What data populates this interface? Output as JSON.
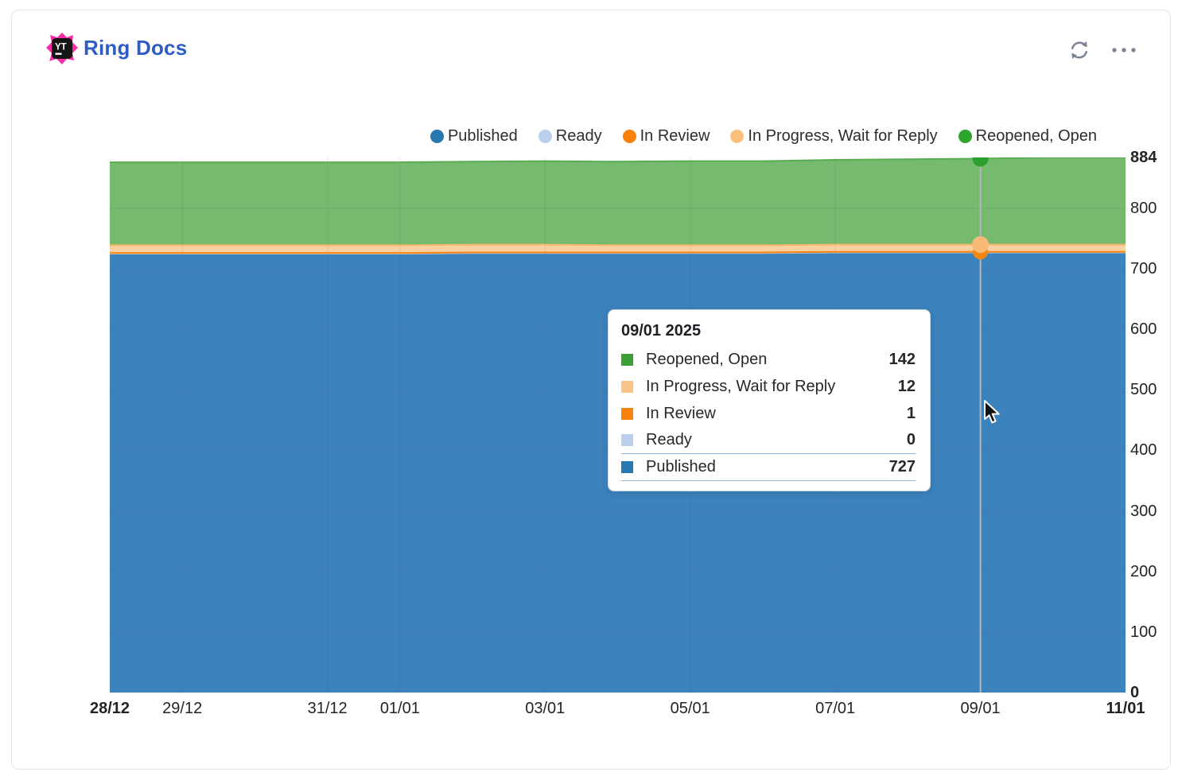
{
  "header": {
    "title": "Ring Docs",
    "logo_text": "YT",
    "actions": {
      "refresh": "Refresh",
      "more": "More options"
    }
  },
  "legend": {
    "items": [
      {
        "label": "Published",
        "color": "#2878b0"
      },
      {
        "label": "Ready",
        "color": "#b9cfec"
      },
      {
        "label": "In Review",
        "color": "#f8820b"
      },
      {
        "label": "In Progress, Wait for Reply",
        "color": "#fbc07e"
      },
      {
        "label": "Reopened, Open",
        "color": "#2ea52c"
      }
    ]
  },
  "tooltip": {
    "title": "09/01 2025",
    "rows": [
      {
        "label": "Reopened, Open",
        "value": "142",
        "color": "#3b9e37",
        "underline": false
      },
      {
        "label": "In Progress, Wait for Reply",
        "value": "12",
        "color": "#fcc389",
        "underline": false
      },
      {
        "label": "In Review",
        "value": "1",
        "color": "#f8820b",
        "underline": false
      },
      {
        "label": "Ready",
        "value": "0",
        "color": "#b9cfec",
        "underline": true
      },
      {
        "label": "Published",
        "value": "727",
        "color": "#2679b2",
        "underline": true
      }
    ]
  },
  "chart_data": {
    "type": "area",
    "stacked": true,
    "title": "Ring Docs",
    "x": [
      "28/12",
      "29/12",
      "30/12",
      "31/12",
      "01/01",
      "02/01",
      "03/01",
      "04/01",
      "05/01",
      "06/01",
      "07/01",
      "08/01",
      "09/01",
      "10/01",
      "11/01"
    ],
    "x_ticks": [
      {
        "index": 0,
        "label": "28/12",
        "bold": true
      },
      {
        "index": 1,
        "label": "29/12",
        "bold": false
      },
      {
        "index": 3,
        "label": "31/12",
        "bold": false
      },
      {
        "index": 4,
        "label": "01/01",
        "bold": false
      },
      {
        "index": 6,
        "label": "03/01",
        "bold": false
      },
      {
        "index": 8,
        "label": "05/01",
        "bold": false
      },
      {
        "index": 10,
        "label": "07/01",
        "bold": false
      },
      {
        "index": 12,
        "label": "09/01",
        "bold": false
      },
      {
        "index": 14,
        "label": "11/01",
        "bold": true
      }
    ],
    "y_ticks": [
      {
        "value": 884,
        "bold": true
      },
      {
        "value": 800,
        "bold": false
      },
      {
        "value": 700,
        "bold": false
      },
      {
        "value": 600,
        "bold": false
      },
      {
        "value": 500,
        "bold": false
      },
      {
        "value": 400,
        "bold": false
      },
      {
        "value": 300,
        "bold": false
      },
      {
        "value": 200,
        "bold": false
      },
      {
        "value": 100,
        "bold": false
      },
      {
        "value": 0,
        "bold": true
      }
    ],
    "ylim": [
      0,
      884
    ],
    "grid": true,
    "legend_position": "top-right",
    "series": [
      {
        "name": "Published",
        "line_color": "#2878b0",
        "fill_color": "#3c82bc",
        "values": [
          725,
          725,
          725,
          725,
          725,
          726,
          726,
          726,
          726,
          726,
          727,
          727,
          727,
          727,
          727
        ]
      },
      {
        "name": "Ready",
        "line_color": "#b9cfec",
        "fill_color": "#b9cfec",
        "values": [
          0,
          0,
          0,
          0,
          0,
          0,
          0,
          0,
          0,
          0,
          0,
          0,
          0,
          0,
          0
        ]
      },
      {
        "name": "In Review",
        "line_color": "#f8820b",
        "fill_color": "#f8820b",
        "values": [
          1,
          1,
          1,
          1,
          1,
          1,
          1,
          1,
          1,
          1,
          1,
          1,
          1,
          1,
          1
        ]
      },
      {
        "name": "In Progress, Wait for Reply",
        "line_color": "#f7b66c",
        "fill_color": "#fbd0a1",
        "values": [
          13,
          13,
          13,
          13,
          13,
          13,
          13,
          12,
          12,
          12,
          12,
          12,
          12,
          12,
          12
        ]
      },
      {
        "name": "Reopened, Open",
        "line_color": "#58ad53",
        "fill_color": "#76ba6f",
        "values": [
          137,
          137,
          137,
          137,
          137,
          137,
          138,
          138,
          139,
          139,
          140,
          141,
          142,
          144,
          144
        ]
      }
    ],
    "hover": {
      "x_index": 12,
      "date_label": "09/01 2025",
      "line_color": "#b2b7bd",
      "markers": [
        {
          "series": "In Review",
          "value_top": 728,
          "color": "#f2870f",
          "r": 9.5
        },
        {
          "series": "In Progress, Wait for Reply",
          "value_top": 740,
          "color": "#f9ba77",
          "r": 10.5
        },
        {
          "series": "Reopened, Open",
          "value_top": 882,
          "color": "#2da02d",
          "r": 10
        }
      ]
    }
  }
}
